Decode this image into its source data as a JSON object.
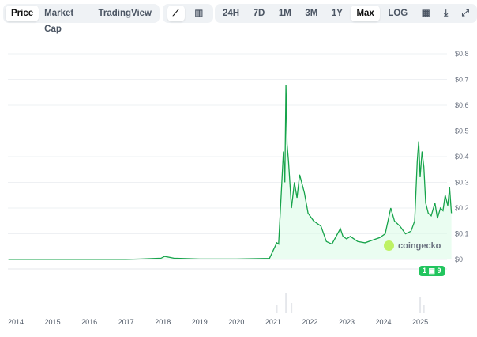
{
  "tabs": {
    "items": [
      "Price",
      "Market Cap",
      "TradingView"
    ],
    "active": "Price"
  },
  "chart_types": {
    "items": [
      "line-chart-icon",
      "candlestick-chart-icon"
    ],
    "active": "line-chart-icon"
  },
  "ranges": {
    "items": [
      "24H",
      "7D",
      "1M",
      "3M",
      "1Y",
      "Max",
      "LOG"
    ],
    "active": "Max"
  },
  "tools": [
    "calendar-icon",
    "download-icon",
    "expand-icon"
  ],
  "watermark": "coingecko",
  "price_badge": "1 ▣ 9",
  "colors": {
    "line": "#16a34a",
    "fill": "#dcfce7",
    "badge": "#22c55e"
  },
  "chart_data": {
    "type": "area",
    "xlabel": "",
    "ylabel": "",
    "x_ticks": [
      "2014",
      "2015",
      "2016",
      "2017",
      "2018",
      "2019",
      "2020",
      "2021",
      "2022",
      "2023",
      "2024",
      "2025"
    ],
    "y_ticks": [
      "$0",
      "$0.1",
      "$0.2",
      "$0.3",
      "$0.4",
      "$0.5",
      "$0.6",
      "$0.7",
      "$0.8"
    ],
    "ylim": [
      0,
      0.8
    ],
    "xlim": [
      2013.8,
      2025.85
    ],
    "grid": true,
    "x": [
      2013.8,
      2015,
      2016,
      2017,
      2017.4,
      2017.95,
      2018.05,
      2018.3,
      2019,
      2020,
      2020.9,
      2021.05,
      2021.1,
      2021.15,
      2021.28,
      2021.32,
      2021.35,
      2021.38,
      2021.42,
      2021.5,
      2021.58,
      2021.65,
      2021.72,
      2021.85,
      2021.95,
      2022.1,
      2022.3,
      2022.45,
      2022.6,
      2022.83,
      2022.9,
      2023.0,
      2023.1,
      2023.3,
      2023.5,
      2023.7,
      2023.9,
      2024.05,
      2024.2,
      2024.3,
      2024.45,
      2024.6,
      2024.75,
      2024.85,
      2024.92,
      2024.96,
      2025.0,
      2025.05,
      2025.1,
      2025.15,
      2025.22,
      2025.3,
      2025.4,
      2025.47,
      2025.55,
      2025.62,
      2025.68,
      2025.75,
      2025.8,
      2025.85
    ],
    "values": [
      0.0005,
      0.0003,
      0.0002,
      0.0003,
      0.002,
      0.005,
      0.012,
      0.005,
      0.002,
      0.002,
      0.004,
      0.05,
      0.065,
      0.06,
      0.42,
      0.3,
      0.68,
      0.45,
      0.38,
      0.2,
      0.3,
      0.24,
      0.33,
      0.26,
      0.18,
      0.15,
      0.13,
      0.07,
      0.06,
      0.12,
      0.09,
      0.08,
      0.09,
      0.07,
      0.065,
      0.075,
      0.085,
      0.1,
      0.2,
      0.15,
      0.13,
      0.1,
      0.11,
      0.15,
      0.38,
      0.46,
      0.32,
      0.42,
      0.36,
      0.22,
      0.18,
      0.17,
      0.22,
      0.16,
      0.2,
      0.19,
      0.25,
      0.21,
      0.28,
      0.18
    ],
    "volume": {
      "x": [
        2021.1,
        2021.35,
        2021.5,
        2025.0,
        2025.1
      ],
      "values": [
        0.4,
        1,
        0.5,
        0.8,
        0.4
      ]
    }
  }
}
